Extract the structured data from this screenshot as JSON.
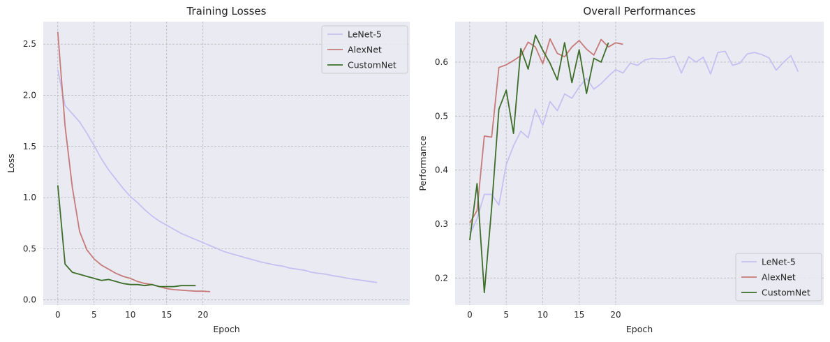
{
  "chart_data": [
    {
      "type": "line",
      "title": "Training Losses",
      "xlabel": "Epoch",
      "ylabel": "Loss",
      "xlim": [
        -2,
        48.5
      ],
      "ylim": [
        -0.05,
        2.72
      ],
      "xticks": [
        0,
        5,
        10,
        15,
        20
      ],
      "yticks": [
        0.0,
        0.5,
        1.0,
        1.5,
        2.0,
        2.5
      ],
      "ytick_labels": [
        "0.0",
        "0.5",
        "1.0",
        "1.5",
        "2.0",
        "2.5"
      ],
      "grid": true,
      "legend_position": "upper right",
      "series": [
        {
          "name": "LeNet-5",
          "color": "#c5c0f2",
          "x": [
            0,
            1,
            2,
            3,
            4,
            5,
            6,
            7,
            8,
            9,
            10,
            11,
            12,
            13,
            14,
            15,
            16,
            17,
            18,
            19,
            20,
            21,
            22,
            23,
            24,
            25,
            26,
            27,
            28,
            29,
            30,
            31,
            32,
            33,
            34,
            35,
            36,
            37,
            38,
            39,
            40,
            41,
            42,
            43,
            44
          ],
          "values": [
            2.25,
            1.9,
            1.82,
            1.74,
            1.63,
            1.51,
            1.38,
            1.27,
            1.18,
            1.09,
            1.01,
            0.95,
            0.88,
            0.82,
            0.77,
            0.73,
            0.69,
            0.65,
            0.62,
            0.59,
            0.56,
            0.53,
            0.5,
            0.47,
            0.45,
            0.43,
            0.41,
            0.39,
            0.37,
            0.355,
            0.34,
            0.33,
            0.31,
            0.3,
            0.29,
            0.27,
            0.26,
            0.25,
            0.235,
            0.225,
            0.21,
            0.2,
            0.19,
            0.18,
            0.17
          ]
        },
        {
          "name": "AlexNet",
          "color": "#c67a78",
          "x": [
            0,
            1,
            2,
            3,
            4,
            5,
            6,
            7,
            8,
            9,
            10,
            11,
            12,
            13,
            14,
            15,
            16,
            17,
            18,
            19,
            20,
            21
          ],
          "values": [
            2.62,
            1.7,
            1.1,
            0.67,
            0.49,
            0.4,
            0.34,
            0.3,
            0.26,
            0.23,
            0.21,
            0.18,
            0.16,
            0.15,
            0.13,
            0.11,
            0.1,
            0.095,
            0.09,
            0.085,
            0.085,
            0.08
          ]
        },
        {
          "name": "CustomNet",
          "color": "#3d6e29",
          "x": [
            0,
            1,
            2,
            3,
            4,
            5,
            6,
            7,
            8,
            9,
            10,
            11,
            12,
            13,
            14,
            15,
            16,
            17,
            18,
            19
          ],
          "values": [
            1.12,
            0.35,
            0.27,
            0.25,
            0.23,
            0.21,
            0.19,
            0.2,
            0.18,
            0.16,
            0.15,
            0.15,
            0.14,
            0.15,
            0.13,
            0.13,
            0.13,
            0.14,
            0.14,
            0.14
          ]
        }
      ]
    },
    {
      "type": "line",
      "title": "Overall Performances",
      "xlabel": "Epoch",
      "ylabel": "Performance",
      "xlim": [
        -2,
        48.5
      ],
      "ylim": [
        0.15,
        0.675
      ],
      "xticks": [
        0,
        5,
        10,
        15,
        20
      ],
      "yticks": [
        0.2,
        0.3,
        0.4,
        0.5,
        0.6
      ],
      "ytick_labels": [
        "0.2",
        "0.3",
        "0.4",
        "0.5",
        "0.6"
      ],
      "grid": true,
      "legend_position": "lower right",
      "series": [
        {
          "name": "LeNet-5",
          "color": "#c5c0f2",
          "x": [
            0,
            1,
            2,
            3,
            4,
            5,
            6,
            7,
            8,
            9,
            10,
            11,
            12,
            13,
            14,
            15,
            16,
            17,
            18,
            19,
            20,
            21,
            22,
            23,
            24,
            25,
            26,
            27,
            28,
            29,
            30,
            31,
            32,
            33,
            34,
            35,
            36,
            37,
            38,
            39,
            40,
            41,
            42,
            43,
            44,
            45
          ],
          "values": [
            0.28,
            0.31,
            0.355,
            0.355,
            0.335,
            0.41,
            0.445,
            0.472,
            0.46,
            0.513,
            0.483,
            0.527,
            0.51,
            0.541,
            0.533,
            0.554,
            0.57,
            0.55,
            0.56,
            0.574,
            0.586,
            0.58,
            0.598,
            0.594,
            0.604,
            0.607,
            0.606,
            0.607,
            0.611,
            0.58,
            0.61,
            0.6,
            0.609,
            0.578,
            0.618,
            0.62,
            0.594,
            0.598,
            0.615,
            0.618,
            0.614,
            0.608,
            0.585,
            0.6,
            0.612,
            0.582
          ]
        },
        {
          "name": "AlexNet",
          "color": "#c67a78",
          "x": [
            0,
            1,
            2,
            3,
            4,
            5,
            6,
            7,
            8,
            9,
            10,
            11,
            12,
            13,
            14,
            15,
            16,
            17,
            18,
            19,
            20,
            21
          ],
          "values": [
            0.302,
            0.325,
            0.463,
            0.461,
            0.59,
            0.595,
            0.603,
            0.612,
            0.637,
            0.628,
            0.597,
            0.643,
            0.616,
            0.61,
            0.628,
            0.64,
            0.624,
            0.613,
            0.642,
            0.628,
            0.636,
            0.633
          ]
        },
        {
          "name": "CustomNet",
          "color": "#3d6e29",
          "x": [
            0,
            1,
            2,
            3,
            4,
            5,
            6,
            7,
            8,
            9,
            10,
            11,
            12,
            13,
            14,
            15,
            16,
            17,
            18,
            19
          ],
          "values": [
            0.27,
            0.375,
            0.173,
            0.33,
            0.513,
            0.548,
            0.468,
            0.625,
            0.587,
            0.65,
            0.622,
            0.598,
            0.567,
            0.636,
            0.562,
            0.623,
            0.542,
            0.607,
            0.6,
            0.636
          ]
        }
      ]
    }
  ]
}
